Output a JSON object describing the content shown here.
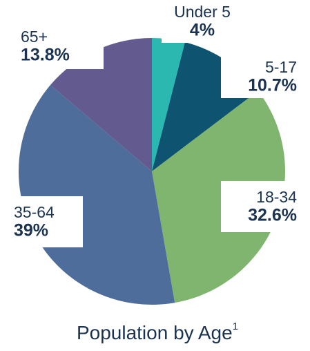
{
  "chart_data": {
    "type": "pie",
    "title": "Population by Age",
    "title_note": "1",
    "categories": [
      "Under 5",
      "5-17",
      "18-34",
      "35-64",
      "65+"
    ],
    "values": [
      4,
      10.7,
      32.6,
      39,
      13.8
    ],
    "value_labels": [
      "4%",
      "10.7%",
      "32.6%",
      "39%",
      "13.8%"
    ],
    "colors": [
      "#2bb8b0",
      "#0e5470",
      "#80b56f",
      "#4f6d9a",
      "#635a8f"
    ]
  }
}
